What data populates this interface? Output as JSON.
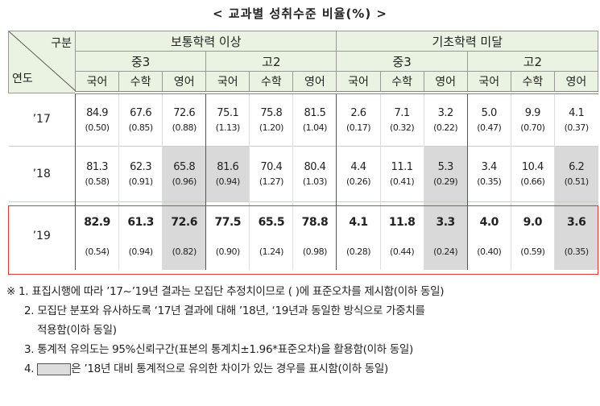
{
  "title": "< 교과별 성취수준 비율(%) >",
  "header": {
    "corner_top": "구분",
    "corner_bottom": "연도",
    "groups": [
      "보통학력 이상",
      "기초학력 미달"
    ],
    "grades": [
      "중3",
      "고2",
      "중3",
      "고2"
    ],
    "subjects": [
      "국어",
      "수학",
      "영어",
      "국어",
      "수학",
      "영어",
      "국어",
      "수학",
      "영어",
      "국어",
      "수학",
      "영어"
    ]
  },
  "rows": [
    {
      "year": "’17",
      "values": [
        "84.9",
        "67.6",
        "72.6",
        "75.1",
        "75.8",
        "81.5",
        "2.6",
        "7.1",
        "3.2",
        "5.0",
        "9.9",
        "4.1"
      ],
      "se": [
        "(0.50)",
        "(0.85)",
        "(0.88)",
        "(1.13)",
        "(1.20)",
        "(1.04)",
        "(0.17)",
        "(0.32)",
        "(0.22)",
        "(0.47)",
        "(0.70)",
        "(0.37)"
      ],
      "shaded": [
        false,
        false,
        false,
        false,
        false,
        false,
        false,
        false,
        false,
        false,
        false,
        false
      ]
    },
    {
      "year": "’18",
      "values": [
        "81.3",
        "62.3",
        "65.8",
        "81.6",
        "70.4",
        "80.4",
        "4.4",
        "11.1",
        "5.3",
        "3.4",
        "10.4",
        "6.2"
      ],
      "se": [
        "(0.58)",
        "(0.91)",
        "(0.96)",
        "(0.94)",
        "(1.27)",
        "(1.03)",
        "(0.26)",
        "(0.41)",
        "(0.29)",
        "(0.35)",
        "(0.66)",
        "(0.51)"
      ],
      "shaded": [
        false,
        false,
        true,
        true,
        false,
        false,
        false,
        false,
        true,
        false,
        false,
        true
      ]
    },
    {
      "year": "’19",
      "values": [
        "82.9",
        "61.3",
        "72.6",
        "77.5",
        "65.5",
        "78.8",
        "4.1",
        "11.8",
        "3.3",
        "4.0",
        "9.0",
        "3.6"
      ],
      "se": [
        "(0.54)",
        "(0.94)",
        "(0.82)",
        "(0.90)",
        "(1.24)",
        "(0.98)",
        "(0.28)",
        "(0.44)",
        "(0.24)",
        "(0.40)",
        "(0.59)",
        "(0.35)"
      ],
      "shaded": [
        false,
        false,
        true,
        false,
        false,
        false,
        false,
        false,
        true,
        false,
        false,
        true
      ]
    }
  ],
  "notes": {
    "mark": "※",
    "n1": "1. 표집시행에 따라 ’17~’19년 결과는 모집단 추정치이므로 ( )에 표준오차를 제시함(이하 동일)",
    "n2a": "2. 모집단 분포와 유사하도록 ‘17년 결과에 대해 ’18년, ‘19년과 동일한 방식으로 가중치를",
    "n2b": "적용함(이하 동일)",
    "n3": "3. 통계적 유의도는 95%신뢰구간(표본의 통계치±1.96*표준오차)을 활용함(이하 동일)",
    "n4_prefix": "4.",
    "n4": "은 ’18년 대비 통계적으로 유의한 차이가 있는 경우를 표시함(이하 동일)"
  },
  "colors": {
    "header_bg": "#eaf3e2",
    "shade": "#d9d9d9",
    "highlight_border": "#e03a3a"
  }
}
